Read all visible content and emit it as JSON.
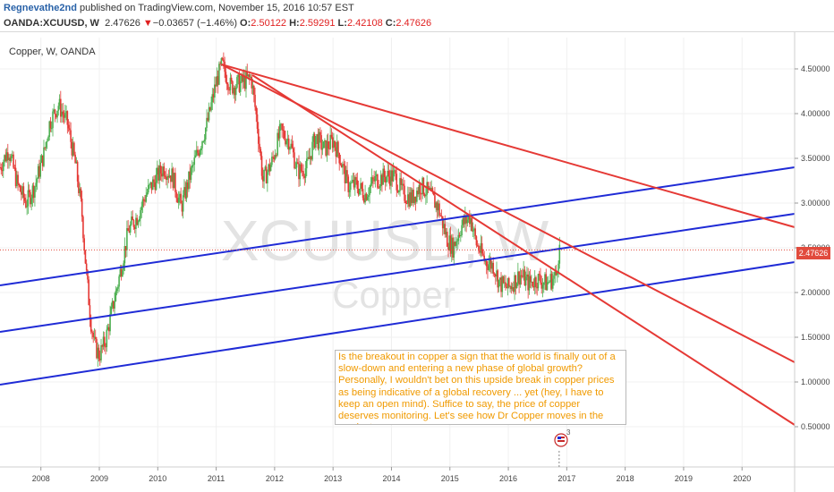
{
  "header": {
    "author": "Regnevathe2nd",
    "published": "published on TradingView.com, November 15, 2016 10:57 EST",
    "symbol": "OANDA:XCUUSD, W",
    "last": "2.47626",
    "change": "−0.03657 (−1.46%)",
    "ohlc": {
      "o": "2.50122",
      "h": "2.59291",
      "l": "2.42108",
      "c": "2.47626"
    }
  },
  "legend": "Copper, W, OANDA",
  "watermark": {
    "symbol": "XCUUSD, W",
    "name": "Copper"
  },
  "annotation": "Is the breakout in copper a sign that the world is finally out of a slow-down and entering a new phase of global growth? Personally, I wouldn't bet on this upside break in copper prices as being indicative of a global recovery ... yet (hey, I have to keep an open mind). Suffice to say, the price of copper deserves monitoring. Let's see how Dr Copper moves in the weeks to come.",
  "price_tag": "2.47626",
  "event_marker": {
    "icon": "flag-event-icon",
    "count": "3"
  },
  "colors": {
    "up": "#4caf50",
    "down": "#e53935",
    "trend": "#e53935",
    "channel": "#1f2bd6",
    "note_text": "#f09a00"
  },
  "chart_data": {
    "type": "candlestick",
    "timeframe": "W",
    "x_ticks": [
      "2008",
      "2009",
      "2010",
      "2011",
      "2012",
      "2013",
      "2014",
      "2015",
      "2016",
      "2017",
      "2018",
      "2019",
      "2020"
    ],
    "y_ticks": [
      "0.50000",
      "1.00000",
      "1.50000",
      "2.00000",
      "2.50000",
      "3.00000",
      "3.50000",
      "4.00000",
      "4.50000"
    ],
    "xlim": [
      2007.3,
      2020.9
    ],
    "ylim": [
      0.05,
      4.85
    ],
    "last_price": 2.47626,
    "path": [
      [
        2007.3,
        3.4
      ],
      [
        2007.45,
        3.6
      ],
      [
        2007.6,
        3.2
      ],
      [
        2007.75,
        3.0
      ],
      [
        2007.9,
        3.2
      ],
      [
        2008.05,
        3.55
      ],
      [
        2008.15,
        3.9
      ],
      [
        2008.3,
        4.1
      ],
      [
        2008.45,
        3.9
      ],
      [
        2008.6,
        3.4
      ],
      [
        2008.7,
        2.9
      ],
      [
        2008.78,
        2.2
      ],
      [
        2008.85,
        1.7
      ],
      [
        2008.92,
        1.4
      ],
      [
        2009.0,
        1.3
      ],
      [
        2009.1,
        1.45
      ],
      [
        2009.2,
        1.75
      ],
      [
        2009.35,
        2.2
      ],
      [
        2009.5,
        2.7
      ],
      [
        2009.65,
        2.85
      ],
      [
        2009.8,
        3.1
      ],
      [
        2009.95,
        3.25
      ],
      [
        2010.1,
        3.4
      ],
      [
        2010.25,
        3.3
      ],
      [
        2010.4,
        2.95
      ],
      [
        2010.55,
        3.3
      ],
      [
        2010.7,
        3.6
      ],
      [
        2010.85,
        3.9
      ],
      [
        2011.0,
        4.35
      ],
      [
        2011.1,
        4.55
      ],
      [
        2011.25,
        4.3
      ],
      [
        2011.45,
        4.35
      ],
      [
        2011.6,
        4.4
      ],
      [
        2011.7,
        3.9
      ],
      [
        2011.8,
        3.25
      ],
      [
        2011.95,
        3.45
      ],
      [
        2012.1,
        3.8
      ],
      [
        2012.25,
        3.7
      ],
      [
        2012.4,
        3.35
      ],
      [
        2012.55,
        3.4
      ],
      [
        2012.7,
        3.75
      ],
      [
        2012.85,
        3.6
      ],
      [
        2013.0,
        3.7
      ],
      [
        2013.1,
        3.55
      ],
      [
        2013.25,
        3.2
      ],
      [
        2013.4,
        3.2
      ],
      [
        2013.55,
        3.1
      ],
      [
        2013.7,
        3.25
      ],
      [
        2013.9,
        3.3
      ],
      [
        2014.05,
        3.3
      ],
      [
        2014.2,
        3.1
      ],
      [
        2014.35,
        3.05
      ],
      [
        2014.5,
        3.2
      ],
      [
        2014.65,
        3.1
      ],
      [
        2014.8,
        2.95
      ],
      [
        2014.95,
        2.6
      ],
      [
        2015.05,
        2.5
      ],
      [
        2015.2,
        2.75
      ],
      [
        2015.35,
        2.85
      ],
      [
        2015.45,
        2.55
      ],
      [
        2015.6,
        2.35
      ],
      [
        2015.75,
        2.3
      ],
      [
        2015.85,
        2.1
      ],
      [
        2016.0,
        2.05
      ],
      [
        2016.2,
        2.2
      ],
      [
        2016.35,
        2.1
      ],
      [
        2016.5,
        2.15
      ],
      [
        2016.65,
        2.1
      ],
      [
        2016.75,
        2.15
      ],
      [
        2016.82,
        2.2
      ],
      [
        2016.87,
        2.5
      ],
      [
        2016.88,
        2.48
      ]
    ],
    "trendlines": [
      {
        "name": "resistance-1",
        "color": "#e53935",
        "points": [
          [
            2011.09,
            4.55
          ],
          [
            2020.9,
            2.73
          ]
        ]
      },
      {
        "name": "resistance-2",
        "color": "#e53935",
        "points": [
          [
            2011.09,
            4.55
          ],
          [
            2020.9,
            1.22
          ]
        ]
      },
      {
        "name": "resistance-3",
        "color": "#e53935",
        "points": [
          [
            2011.62,
            4.43
          ],
          [
            2020.9,
            0.52
          ]
        ]
      }
    ],
    "channel_lines": [
      {
        "name": "channel-upper",
        "color": "#1f2bd6",
        "points": [
          [
            2007.3,
            2.08
          ],
          [
            2020.9,
            3.4
          ]
        ]
      },
      {
        "name": "channel-middle",
        "color": "#1f2bd6",
        "points": [
          [
            2007.3,
            1.56
          ],
          [
            2020.9,
            2.88
          ]
        ]
      },
      {
        "name": "channel-lower",
        "color": "#1f2bd6",
        "points": [
          [
            2007.3,
            0.97
          ],
          [
            2020.9,
            2.34
          ]
        ]
      }
    ]
  }
}
